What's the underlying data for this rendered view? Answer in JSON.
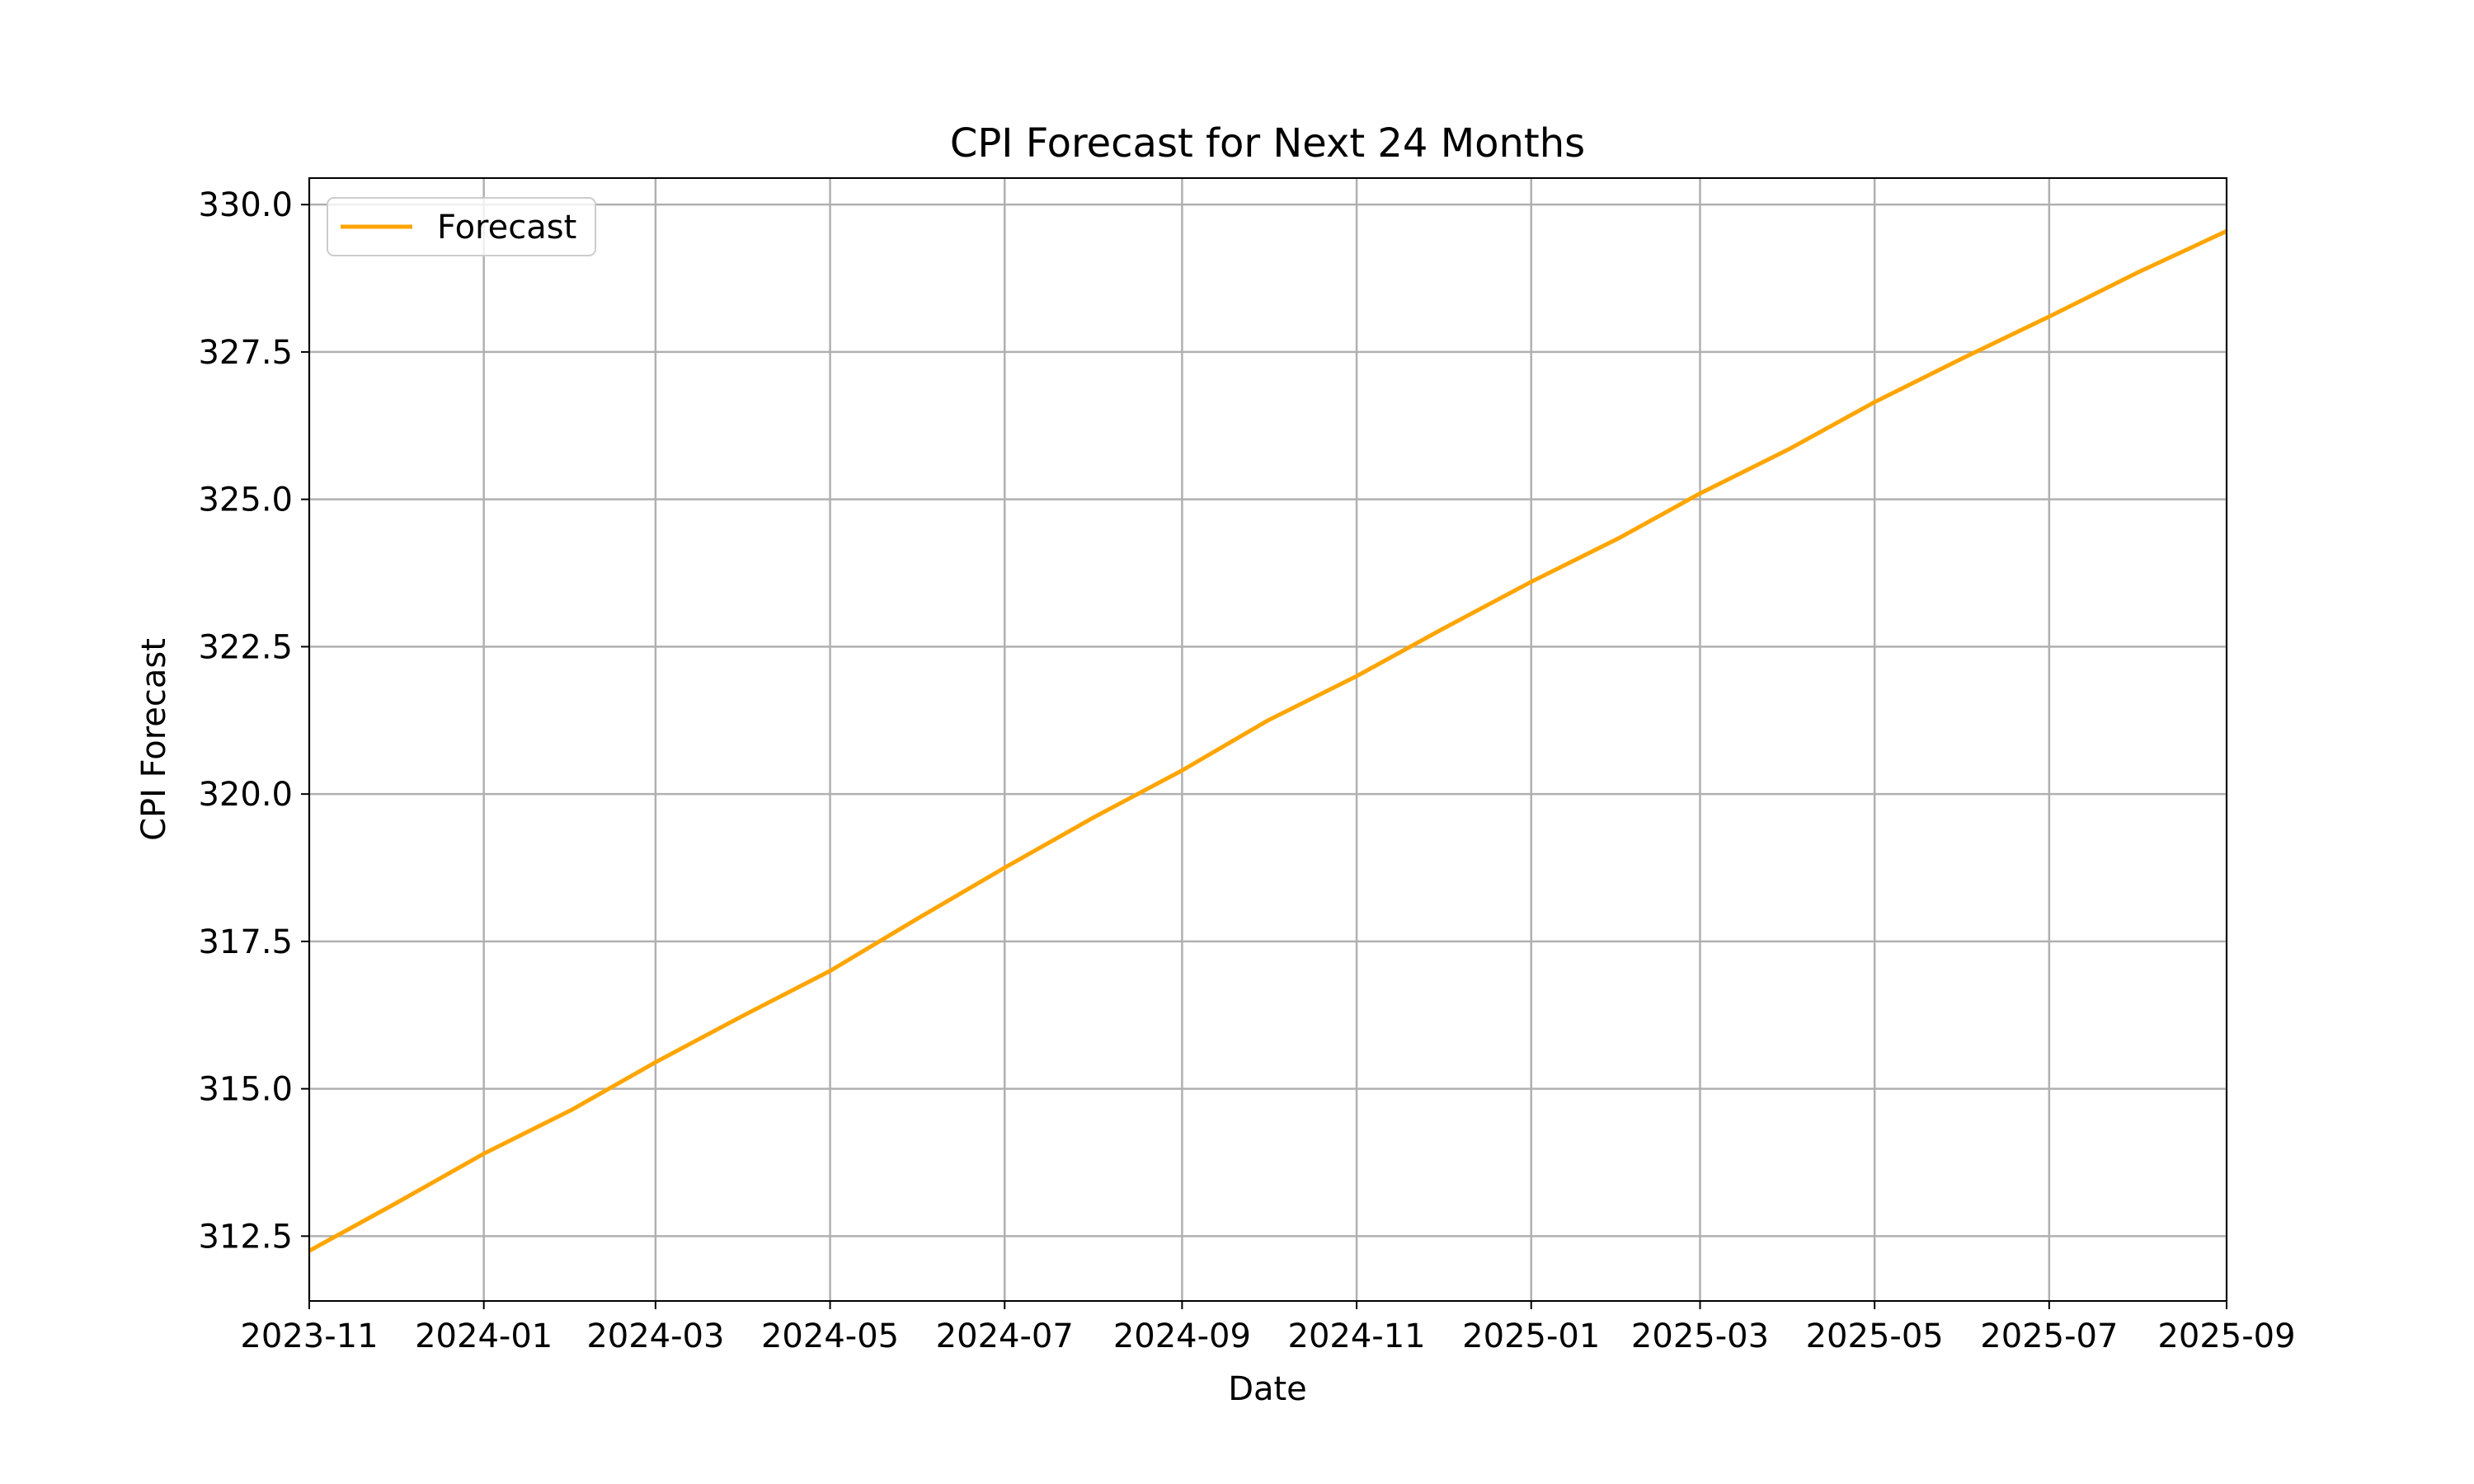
{
  "chart_data": {
    "type": "line",
    "title": "CPI Forecast for Next 24 Months",
    "xlabel": "Date",
    "ylabel": "CPI Forecast",
    "xlim": [
      "2023-11-01",
      "2025-09-01"
    ],
    "ylim": [
      311.4,
      330.45
    ],
    "x_ticks": [
      "2023-11",
      "2024-01",
      "2024-03",
      "2024-05",
      "2024-07",
      "2024-09",
      "2024-11",
      "2025-01",
      "2025-03",
      "2025-05",
      "2025-07",
      "2025-09"
    ],
    "y_ticks": [
      "312.5",
      "315.0",
      "317.5",
      "320.0",
      "322.5",
      "325.0",
      "327.5",
      "330.0"
    ],
    "grid": true,
    "legend": {
      "position": "top-left",
      "entries": [
        "Forecast"
      ]
    },
    "series": [
      {
        "name": "Forecast",
        "color": "#ffa500",
        "x": [
          "2023-11-01",
          "2023-12-01",
          "2024-01-01",
          "2024-02-01",
          "2024-03-01",
          "2024-04-01",
          "2024-05-01",
          "2024-06-01",
          "2024-07-01",
          "2024-08-01",
          "2024-09-01",
          "2024-10-01",
          "2024-11-01",
          "2024-12-01",
          "2025-01-01",
          "2025-02-01",
          "2025-03-01",
          "2025-04-01",
          "2025-05-01",
          "2025-06-01",
          "2025-07-01",
          "2025-08-01",
          "2025-09-01"
        ],
        "y": [
          312.25,
          313.05,
          313.9,
          314.65,
          315.45,
          316.25,
          317.0,
          317.9,
          318.75,
          319.6,
          320.4,
          321.25,
          322.0,
          322.8,
          323.6,
          324.35,
          325.1,
          325.85,
          326.65,
          327.4,
          328.1,
          328.85,
          329.55
        ]
      }
    ]
  }
}
